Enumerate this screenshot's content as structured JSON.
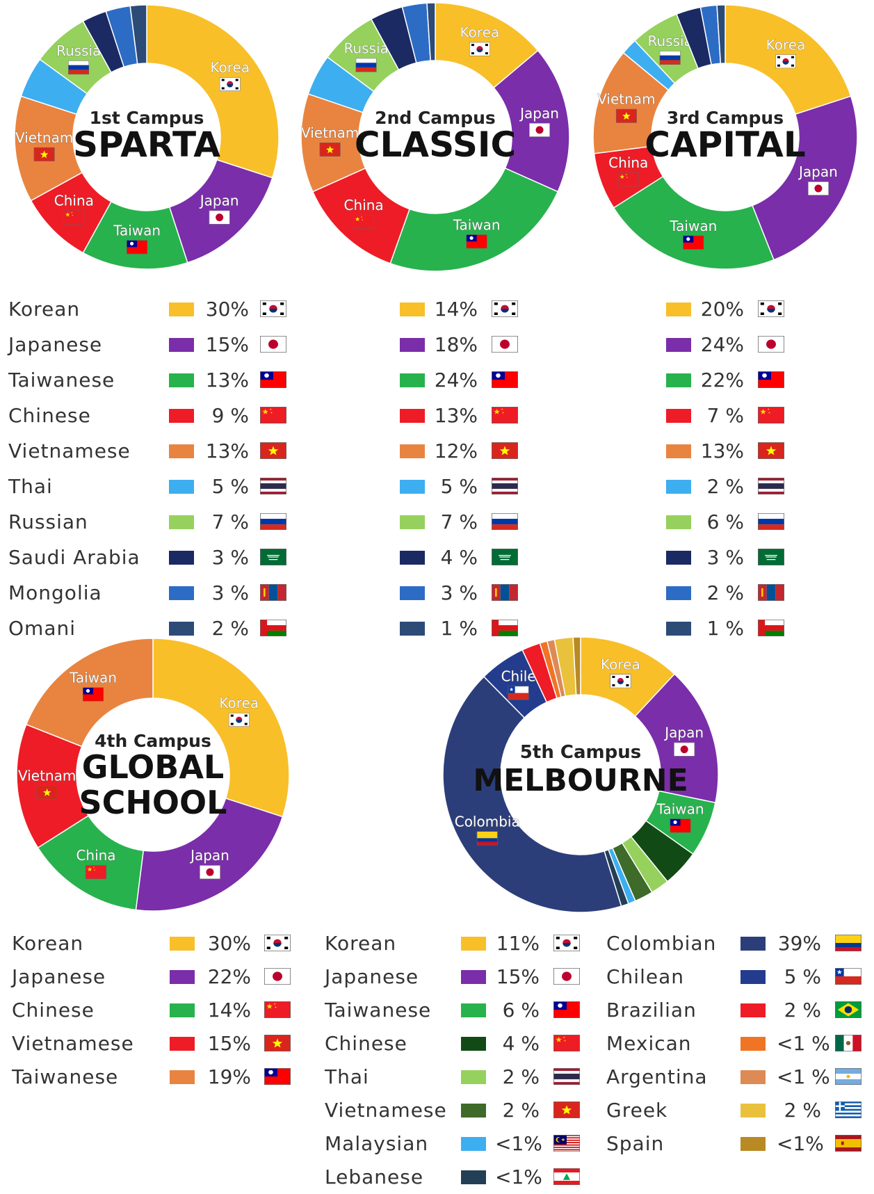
{
  "charts": [
    {
      "id": "sparta",
      "title_small": "1st Campus",
      "title_big": [
        "SPARTA"
      ],
      "segments": [
        {
          "value": 30,
          "color": "#f8bf29",
          "label": "Korea",
          "flag": "kr"
        },
        {
          "value": 15,
          "color": "#7a2ea9",
          "label": "Japan",
          "flag": "jp"
        },
        {
          "value": 13,
          "color": "#27b24d",
          "label": "Taiwan",
          "flag": "tw"
        },
        {
          "value": 9,
          "color": "#ee1c26",
          "label": "China",
          "flag": "cn"
        },
        {
          "value": 13,
          "color": "#e88440",
          "label": "Vietnam",
          "flag": "vn"
        },
        {
          "value": 5,
          "color": "#3daef0",
          "label": "",
          "flag": ""
        },
        {
          "value": 7,
          "color": "#95d15c",
          "label": "Russia",
          "flag": "ru"
        },
        {
          "value": 3,
          "color": "#1b2a63",
          "label": "",
          "flag": ""
        },
        {
          "value": 3,
          "color": "#2d6cc4",
          "label": "",
          "flag": ""
        },
        {
          "value": 2,
          "color": "#2c4b77",
          "label": "",
          "flag": ""
        }
      ]
    },
    {
      "id": "classic",
      "title_small": "2nd Campus",
      "title_big": [
        "CLASSIC"
      ],
      "segments": [
        {
          "value": 14,
          "color": "#f8bf29",
          "label": "Korea",
          "flag": "kr"
        },
        {
          "value": 18,
          "color": "#7a2ea9",
          "label": "Japan",
          "flag": "jp"
        },
        {
          "value": 24,
          "color": "#27b24d",
          "label": "Taiwan",
          "flag": "tw"
        },
        {
          "value": 13,
          "color": "#ee1c26",
          "label": "China",
          "flag": "cn"
        },
        {
          "value": 12,
          "color": "#e88440",
          "label": "Vietnam",
          "flag": "vn"
        },
        {
          "value": 5,
          "color": "#3daef0",
          "label": "",
          "flag": ""
        },
        {
          "value": 7,
          "color": "#95d15c",
          "label": "Russia",
          "flag": "ru"
        },
        {
          "value": 4,
          "color": "#1b2a63",
          "label": "",
          "flag": ""
        },
        {
          "value": 3,
          "color": "#2d6cc4",
          "label": "",
          "flag": ""
        },
        {
          "value": 1,
          "color": "#2c4b77",
          "label": "",
          "flag": ""
        }
      ]
    },
    {
      "id": "capital",
      "title_small": "3rd Campus",
      "title_big": [
        "CAPITAL"
      ],
      "segments": [
        {
          "value": 20,
          "color": "#f8bf29",
          "label": "Korea",
          "flag": "kr"
        },
        {
          "value": 24,
          "color": "#7a2ea9",
          "label": "Japan",
          "flag": "jp"
        },
        {
          "value": 22,
          "color": "#27b24d",
          "label": "Taiwan",
          "flag": "tw"
        },
        {
          "value": 7,
          "color": "#ee1c26",
          "label": "China",
          "flag": "cn"
        },
        {
          "value": 13,
          "color": "#e88440",
          "label": "Vietnam",
          "flag": "vn"
        },
        {
          "value": 2,
          "color": "#3daef0",
          "label": "",
          "flag": ""
        },
        {
          "value": 6,
          "color": "#95d15c",
          "label": "Russia",
          "flag": "ru"
        },
        {
          "value": 3,
          "color": "#1b2a63",
          "label": "",
          "flag": ""
        },
        {
          "value": 2,
          "color": "#2d6cc4",
          "label": "",
          "flag": ""
        },
        {
          "value": 1,
          "color": "#2c4b77",
          "label": "",
          "flag": ""
        }
      ]
    },
    {
      "id": "global",
      "title_small": "4th Campus",
      "title_big": [
        "GLOBAL",
        "SCHOOL"
      ],
      "segments": [
        {
          "value": 30,
          "color": "#f8bf29",
          "label": "Korea",
          "flag": "kr"
        },
        {
          "value": 22,
          "color": "#7a2ea9",
          "label": "Japan",
          "flag": "jp"
        },
        {
          "value": 14,
          "color": "#27b24d",
          "label": "China",
          "flag": "cn"
        },
        {
          "value": 15,
          "color": "#ee1c26",
          "label": "Vietnam",
          "flag": "vn"
        },
        {
          "value": 19,
          "color": "#e88440",
          "label": "Taiwan",
          "flag": "tw"
        }
      ]
    },
    {
      "id": "melbourne",
      "title_small": "5th Campus",
      "title_big": [
        "MELBOURNE"
      ],
      "segments": [
        {
          "value": 11,
          "color": "#f8bf29",
          "label": "Korea",
          "flag": "kr"
        },
        {
          "value": 15,
          "color": "#7a2ea9",
          "label": "Japan",
          "flag": "jp"
        },
        {
          "value": 6,
          "color": "#27b24d",
          "label": "Taiwan",
          "flag": "tw"
        },
        {
          "value": 4,
          "color": "#114a15",
          "label": "",
          "flag": ""
        },
        {
          "value": 2,
          "color": "#95d15c",
          "label": "",
          "flag": ""
        },
        {
          "value": 2,
          "color": "#3e6a2a",
          "label": "",
          "flag": ""
        },
        {
          "value": 0.8,
          "color": "#3daef0",
          "label": "",
          "flag": ""
        },
        {
          "value": 0.8,
          "color": "#223f55",
          "label": "",
          "flag": ""
        },
        {
          "value": 39,
          "color": "#2c3e7a",
          "label": "Colombia",
          "flag": "co"
        },
        {
          "value": 5,
          "color": "#233c8e",
          "label": "Chile",
          "flag": "cl"
        },
        {
          "value": 2,
          "color": "#ee1c26",
          "label": "",
          "flag": ""
        },
        {
          "value": 0.8,
          "color": "#f07424",
          "label": "",
          "flag": ""
        },
        {
          "value": 0.8,
          "color": "#de8a55",
          "label": "",
          "flag": ""
        },
        {
          "value": 2,
          "color": "#e9c13d",
          "label": "",
          "flag": ""
        },
        {
          "value": 0.8,
          "color": "#b98a24",
          "label": "",
          "flag": ""
        }
      ]
    }
  ],
  "legend_top": {
    "rows": [
      "Korean",
      "Japanese",
      "Taiwanese",
      "Chinese",
      "Vietnamese",
      "Thai",
      "Russian",
      "Saudi Arabia",
      "Mongolia",
      "Omani"
    ],
    "colors": [
      "#f8bf29",
      "#7a2ea9",
      "#27b24d",
      "#ee1c26",
      "#e88440",
      "#3daef0",
      "#95d15c",
      "#1b2a63",
      "#2d6cc4",
      "#2c4b77"
    ],
    "flags": [
      "kr",
      "jp",
      "tw",
      "cn",
      "vn",
      "th",
      "ru",
      "sa",
      "mn",
      "om"
    ],
    "sparta": [
      "30%",
      "15%",
      "13%",
      "9 %",
      "13%",
      "5 %",
      "7 %",
      "3 %",
      "3 %",
      "2 %"
    ],
    "classic": [
      "14%",
      "18%",
      "24%",
      "13%",
      "12%",
      "5 %",
      "7 %",
      "4 %",
      "3 %",
      "1 %"
    ],
    "capital": [
      "20%",
      "24%",
      "22%",
      "7 %",
      "13%",
      "2 %",
      "6 %",
      "3 %",
      "2 %",
      "1 %"
    ]
  },
  "legend_global": [
    {
      "name": "Korean",
      "color": "#f8bf29",
      "pct": "30%",
      "flag": "kr"
    },
    {
      "name": "Japanese",
      "color": "#7a2ea9",
      "pct": "22%",
      "flag": "jp"
    },
    {
      "name": "Chinese",
      "color": "#27b24d",
      "pct": "14%",
      "flag": "cn"
    },
    {
      "name": "Vietnamese",
      "color": "#ee1c26",
      "pct": "15%",
      "flag": "vn"
    },
    {
      "name": "Taiwanese",
      "color": "#e88440",
      "pct": "19%",
      "flag": "tw"
    }
  ],
  "legend_melb_left": [
    {
      "name": "Korean",
      "color": "#f8bf29",
      "pct": "11%",
      "flag": "kr"
    },
    {
      "name": "Japanese",
      "color": "#7a2ea9",
      "pct": "15%",
      "flag": "jp"
    },
    {
      "name": "Taiwanese",
      "color": "#27b24d",
      "pct": "6 %",
      "flag": "tw"
    },
    {
      "name": "Chinese",
      "color": "#114a15",
      "pct": "4 %",
      "flag": "cn"
    },
    {
      "name": "Thai",
      "color": "#95d15c",
      "pct": "2 %",
      "flag": "th"
    },
    {
      "name": "Vietnamese",
      "color": "#3e6a2a",
      "pct": "2 %",
      "flag": "vn"
    },
    {
      "name": "Malaysian",
      "color": "#3daef0",
      "pct": "<1%",
      "flag": "my"
    },
    {
      "name": "Lebanese",
      "color": "#223f55",
      "pct": "<1%",
      "flag": "lb"
    }
  ],
  "legend_melb_right": [
    {
      "name": "Colombian",
      "color": "#2c3e7a",
      "pct": "39%",
      "flag": "co"
    },
    {
      "name": "Chilean",
      "color": "#233c8e",
      "pct": "5 %",
      "flag": "cl"
    },
    {
      "name": "Brazilian",
      "color": "#ee1c26",
      "pct": "2 %",
      "flag": "br"
    },
    {
      "name": "Mexican",
      "color": "#f07424",
      "pct": "<1 %",
      "flag": "mx"
    },
    {
      "name": "Argentina",
      "color": "#de8a55",
      "pct": "<1 %",
      "flag": "ar"
    },
    {
      "name": "Greek",
      "color": "#e9c13d",
      "pct": "2 %",
      "flag": "gr"
    },
    {
      "name": "Spain",
      "color": "#b98a24",
      "pct": "<1%",
      "flag": "es"
    }
  ],
  "chart_data": [
    {
      "type": "pie",
      "title": "1st Campus SPARTA",
      "categories": [
        "Korean",
        "Japanese",
        "Taiwanese",
        "Chinese",
        "Vietnamese",
        "Thai",
        "Russian",
        "Saudi Arabia",
        "Mongolia",
        "Omani"
      ],
      "values": [
        30,
        15,
        13,
        9,
        13,
        5,
        7,
        3,
        3,
        2
      ]
    },
    {
      "type": "pie",
      "title": "2nd Campus CLASSIC",
      "categories": [
        "Korean",
        "Japanese",
        "Taiwanese",
        "Chinese",
        "Vietnamese",
        "Thai",
        "Russian",
        "Saudi Arabia",
        "Mongolia",
        "Omani"
      ],
      "values": [
        14,
        18,
        24,
        13,
        12,
        5,
        7,
        4,
        3,
        1
      ]
    },
    {
      "type": "pie",
      "title": "3rd Campus CAPITAL",
      "categories": [
        "Korean",
        "Japanese",
        "Taiwanese",
        "Chinese",
        "Vietnamese",
        "Thai",
        "Russian",
        "Saudi Arabia",
        "Mongolia",
        "Omani"
      ],
      "values": [
        20,
        24,
        22,
        7,
        13,
        2,
        6,
        3,
        2,
        1
      ]
    },
    {
      "type": "pie",
      "title": "4th Campus GLOBAL SCHOOL",
      "categories": [
        "Korean",
        "Japanese",
        "Chinese",
        "Vietnamese",
        "Taiwanese"
      ],
      "values": [
        30,
        22,
        14,
        15,
        19
      ]
    },
    {
      "type": "pie",
      "title": "5th Campus MELBOURNE",
      "categories": [
        "Korean",
        "Japanese",
        "Taiwanese",
        "Chinese",
        "Thai",
        "Vietnamese",
        "Malaysian",
        "Lebanese",
        "Colombian",
        "Chilean",
        "Brazilian",
        "Mexican",
        "Argentina",
        "Greek",
        "Spain"
      ],
      "values": [
        "11%",
        "15%",
        "6 %",
        "4 %",
        "2 %",
        "2 %",
        "<1%",
        "<1%",
        "39%",
        "5 %",
        "2 %",
        "<1 %",
        "<1 %",
        "2 %",
        "<1%"
      ]
    }
  ]
}
